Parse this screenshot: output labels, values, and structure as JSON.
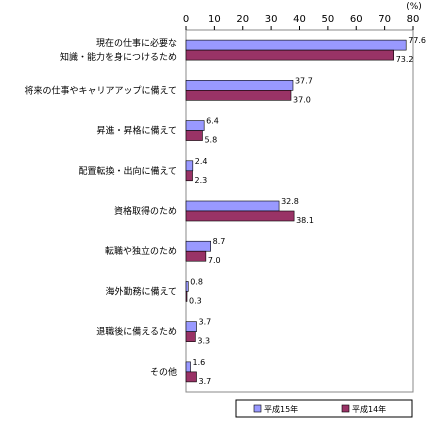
{
  "chart_data": {
    "type": "bar",
    "orientation": "horizontal",
    "unit": "(%)",
    "xlim": [
      0,
      80
    ],
    "ticks": [
      "0",
      "10",
      "20",
      "30",
      "40",
      "50",
      "60",
      "70",
      "80"
    ],
    "categories": [
      [
        "現在の仕事に必要な",
        "知識・能力を身につけるため"
      ],
      [
        "将来の仕事やキャリアアップに備えて"
      ],
      [
        "昇進・昇格に備えて"
      ],
      [
        "配置転換・出向に備えて"
      ],
      [
        "資格取得のため"
      ],
      [
        "転職や独立のため"
      ],
      [
        "海外勤務に備えて"
      ],
      [
        "退職後に備えるため"
      ],
      [
        "その他"
      ]
    ],
    "series": [
      {
        "name": "平成15年",
        "color": "#9999ff",
        "values": [
          77.6,
          37.7,
          6.4,
          2.4,
          32.8,
          8.7,
          0.8,
          3.7,
          1.6
        ],
        "labels": [
          "77.6",
          "37.7",
          "6.4",
          "2.4",
          "32.8",
          "8.7",
          "0.8",
          "3.7",
          "1.6"
        ]
      },
      {
        "name": "平成14年",
        "color": "#993366",
        "values": [
          73.2,
          37.0,
          5.8,
          2.3,
          38.1,
          7.0,
          0.3,
          3.3,
          3.7
        ],
        "labels": [
          "73.2",
          "37.0",
          "5.8",
          "2.3",
          "38.1",
          "7.0",
          "0.3",
          "3.3",
          "3.7"
        ]
      }
    ],
    "grid": false,
    "legend_position": "bottom-right"
  }
}
